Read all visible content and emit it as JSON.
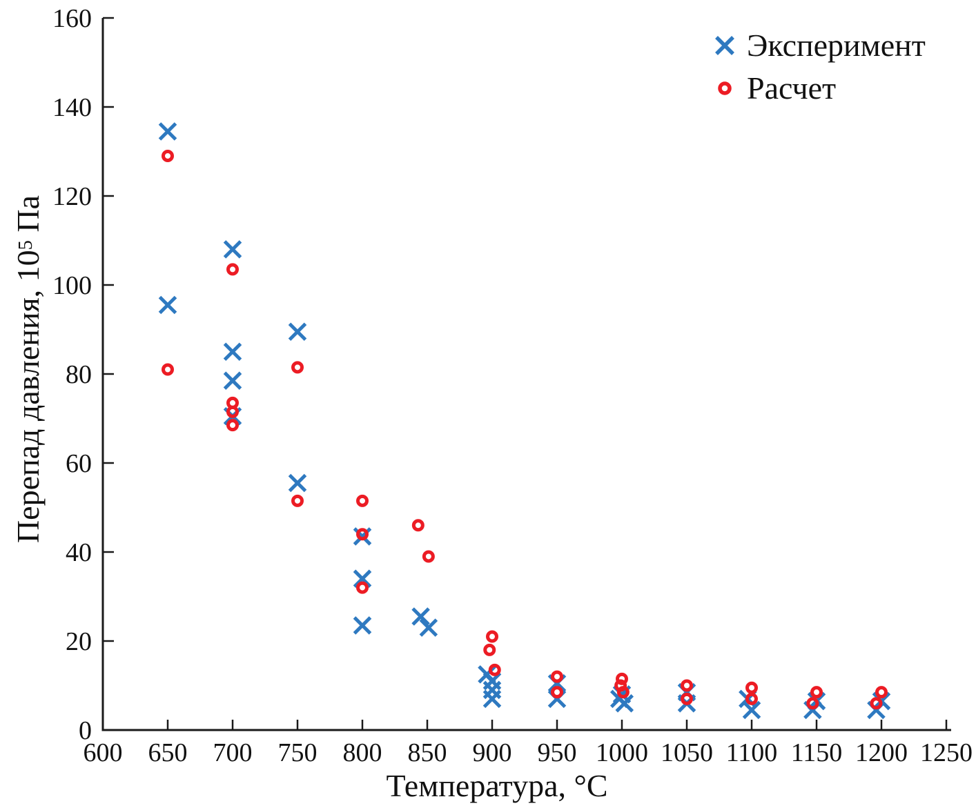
{
  "figure": {
    "background": "#ffffff",
    "text_color": "#111111",
    "axis_color": "#1a1a1a"
  },
  "legend": {
    "position": "top-right",
    "entries": [
      {
        "label": "Эксперимент",
        "marker": "x",
        "color": "#2e79c0"
      },
      {
        "label": "Расчет",
        "marker": "o",
        "color": "#ec1c24"
      }
    ]
  },
  "chart_data": {
    "type": "scatter",
    "title": "",
    "xlabel": "Температура, °C",
    "ylabel": "Перепад давления, 10⁵ Па",
    "ylabel_parts": {
      "prefix": "Перепад давления, 10",
      "sup": "5",
      "suffix": " Па"
    },
    "xlim": [
      600,
      1250
    ],
    "ylim": [
      0,
      160
    ],
    "x_ticks": [
      600,
      650,
      700,
      750,
      800,
      850,
      900,
      950,
      1000,
      1050,
      1100,
      1150,
      1200,
      1250
    ],
    "y_ticks": [
      0,
      20,
      40,
      60,
      80,
      100,
      120,
      140,
      160
    ],
    "grid": false,
    "legend_position": "top-right",
    "series": [
      {
        "name": "Эксперимент",
        "marker": "x",
        "color": "#2e79c0",
        "points": [
          [
            650,
            134.5
          ],
          [
            650,
            95.5
          ],
          [
            700,
            108
          ],
          [
            700,
            85
          ],
          [
            700,
            78.5
          ],
          [
            700,
            70.5
          ],
          [
            750,
            89.5
          ],
          [
            750,
            55.5
          ],
          [
            800,
            43.5
          ],
          [
            800,
            34
          ],
          [
            800,
            23.5
          ],
          [
            845,
            25.5
          ],
          [
            851,
            23
          ],
          [
            896,
            12.5
          ],
          [
            900,
            11
          ],
          [
            900,
            9
          ],
          [
            900,
            7
          ],
          [
            950,
            10.5
          ],
          [
            950,
            7
          ],
          [
            1000,
            8
          ],
          [
            998,
            7
          ],
          [
            1002,
            6
          ],
          [
            1050,
            8.5
          ],
          [
            1050,
            6
          ],
          [
            1097,
            7
          ],
          [
            1100,
            4.5
          ],
          [
            1150,
            6.5
          ],
          [
            1147,
            4.5
          ],
          [
            1200,
            6.5
          ],
          [
            1196,
            4.5
          ]
        ]
      },
      {
        "name": "Расчет",
        "marker": "o",
        "color": "#ec1c24",
        "points": [
          [
            650,
            129
          ],
          [
            650,
            81
          ],
          [
            700,
            103.5
          ],
          [
            700,
            73.5
          ],
          [
            700,
            71.5
          ],
          [
            700,
            68.5
          ],
          [
            750,
            81.5
          ],
          [
            750,
            51.5
          ],
          [
            800,
            51.5
          ],
          [
            800,
            44
          ],
          [
            800,
            32
          ],
          [
            843,
            46
          ],
          [
            851,
            39
          ],
          [
            900,
            21
          ],
          [
            898,
            18
          ],
          [
            902,
            13.5
          ],
          [
            950,
            12
          ],
          [
            950,
            8.5
          ],
          [
            1000,
            11.5
          ],
          [
            999,
            10
          ],
          [
            1001,
            8.5
          ],
          [
            1050,
            10
          ],
          [
            1050,
            7
          ],
          [
            1100,
            9.5
          ],
          [
            1100,
            7
          ],
          [
            1150,
            8.5
          ],
          [
            1147,
            6
          ],
          [
            1200,
            8.5
          ],
          [
            1196,
            6
          ]
        ]
      }
    ]
  }
}
